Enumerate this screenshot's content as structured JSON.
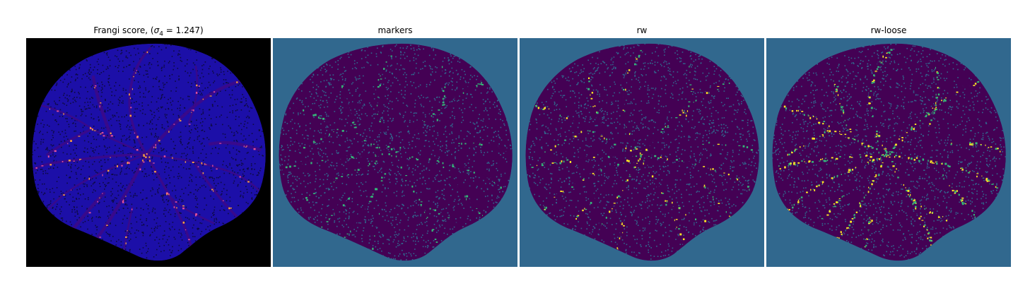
{
  "figure": {
    "panels": [
      {
        "title_prefix": "Frangi score, (",
        "title_symbol": "σ",
        "title_subscript": "4",
        "title_suffix": " = 1.247)",
        "background_color": "#000000",
        "fill_color": "#1c0fa8",
        "texture_color": "#0d0a40",
        "vessel_color": "#3a0a8a",
        "highlight_colors": [
          "#e0509a",
          "#f8a040"
        ]
      },
      {
        "title": "markers",
        "background_color": "#31688e",
        "fill_color": "#440154",
        "texture_color": "#31688e",
        "vessel_color": "#440154",
        "highlight_colors": [
          "#35b779"
        ]
      },
      {
        "title": "rw",
        "background_color": "#31688e",
        "fill_color": "#440154",
        "texture_color": "#31688e",
        "vessel_color": "#440154",
        "highlight_colors": [
          "#35b779",
          "#fde725"
        ]
      },
      {
        "title": "rw-loose",
        "background_color": "#31688e",
        "fill_color": "#440154",
        "texture_color": "#31688e",
        "vessel_color": "#440154",
        "highlight_colors": [
          "#fde725",
          "#35b779"
        ]
      }
    ]
  }
}
